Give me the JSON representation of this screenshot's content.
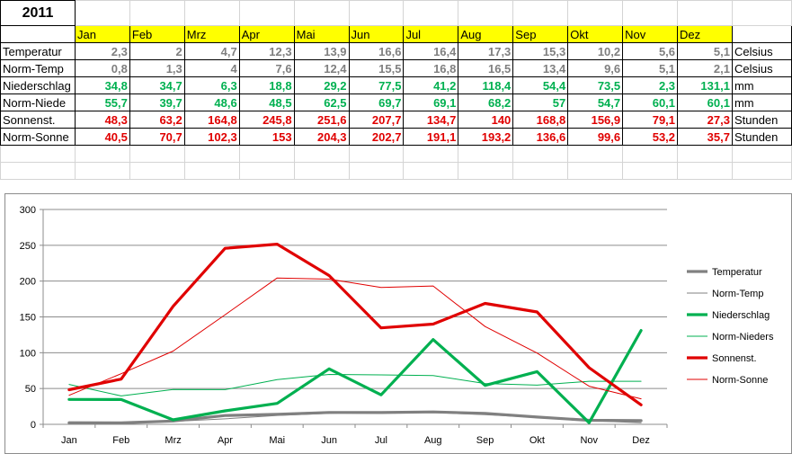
{
  "sheet": {
    "year": "2011",
    "months": [
      "Jan",
      "Feb",
      "Mrz",
      "Apr",
      "Mai",
      "Jun",
      "Jul",
      "Aug",
      "Sep",
      "Okt",
      "Nov",
      "Dez"
    ],
    "rows": [
      {
        "label": "Temperatur",
        "values": [
          "2,3",
          "2",
          "4,7",
          "12,3",
          "13,9",
          "16,6",
          "16,4",
          "17,3",
          "15,3",
          "10,2",
          "5,6",
          "5,1"
        ],
        "unit": "Celsius",
        "color": "gray"
      },
      {
        "label": "Norm-Temp",
        "values": [
          "0,8",
          "1,3",
          "4",
          "7,6",
          "12,4",
          "15,5",
          "16,8",
          "16,5",
          "13,4",
          "9,6",
          "5,1",
          "2,1"
        ],
        "unit": "Celsius",
        "color": "gray"
      },
      {
        "label": "Niederschlag",
        "values": [
          "34,8",
          "34,7",
          "6,3",
          "18,8",
          "29,2",
          "77,5",
          "41,2",
          "118,4",
          "54,4",
          "73,5",
          "2,3",
          "131,1"
        ],
        "unit": "mm",
        "color": "green"
      },
      {
        "label": "Norm-Niede",
        "values": [
          "55,7",
          "39,7",
          "48,6",
          "48,5",
          "62,5",
          "69,7",
          "69,1",
          "68,2",
          "57",
          "54,7",
          "60,1",
          "60,1"
        ],
        "unit": "mm",
        "color": "green"
      },
      {
        "label": "Sonnenst.",
        "values": [
          "48,3",
          "63,2",
          "164,8",
          "245,8",
          "251,6",
          "207,7",
          "134,7",
          "140",
          "168,8",
          "156,9",
          "79,1",
          "27,3"
        ],
        "unit": "Stunden",
        "color": "red"
      },
      {
        "label": "Norm-Sonne",
        "values": [
          "40,5",
          "70,7",
          "102,3",
          "153",
          "204,3",
          "202,7",
          "191,1",
          "193,2",
          "136,6",
          "99,6",
          "53,2",
          "35,7"
        ],
        "unit": "Stunden",
        "color": "red"
      }
    ]
  },
  "chart_data": {
    "type": "line",
    "categories": [
      "Jan",
      "Feb",
      "Mrz",
      "Apr",
      "Mai",
      "Jun",
      "Jul",
      "Aug",
      "Sep",
      "Okt",
      "Nov",
      "Dez"
    ],
    "ylim": [
      0,
      300
    ],
    "yticks": [
      0,
      50,
      100,
      150,
      200,
      250,
      300
    ],
    "grid": true,
    "legend_position": "right",
    "series": [
      {
        "name": "Temperatur",
        "values": [
          2.3,
          2,
          4.7,
          12.3,
          13.9,
          16.6,
          16.4,
          17.3,
          15.3,
          10.2,
          5.6,
          5.1
        ],
        "color": "#808080",
        "weight": "thick"
      },
      {
        "name": "Norm-Temp",
        "values": [
          0.8,
          1.3,
          4,
          7.6,
          12.4,
          15.5,
          16.8,
          16.5,
          13.4,
          9.6,
          5.1,
          2.1
        ],
        "color": "#808080",
        "weight": "thin"
      },
      {
        "name": "Niederschlag",
        "values": [
          34.8,
          34.7,
          6.3,
          18.8,
          29.2,
          77.5,
          41.2,
          118.4,
          54.4,
          73.5,
          2.3,
          131.1
        ],
        "color": "#00b050",
        "weight": "thick"
      },
      {
        "name": "Norm-Nieders",
        "values": [
          55.7,
          39.7,
          48.6,
          48.5,
          62.5,
          69.7,
          69.1,
          68.2,
          57,
          54.7,
          60.1,
          60.1
        ],
        "color": "#00b050",
        "weight": "thin"
      },
      {
        "name": "Sonnenst.",
        "values": [
          48.3,
          63.2,
          164.8,
          245.8,
          251.6,
          207.7,
          134.7,
          140,
          168.8,
          156.9,
          79.1,
          27.3
        ],
        "color": "#e00000",
        "weight": "thick"
      },
      {
        "name": "Norm-Sonne",
        "values": [
          40.5,
          70.7,
          102.3,
          153,
          204.3,
          202.7,
          191.1,
          193.2,
          136.6,
          99.6,
          53.2,
          35.7
        ],
        "color": "#e00000",
        "weight": "thin"
      }
    ]
  }
}
